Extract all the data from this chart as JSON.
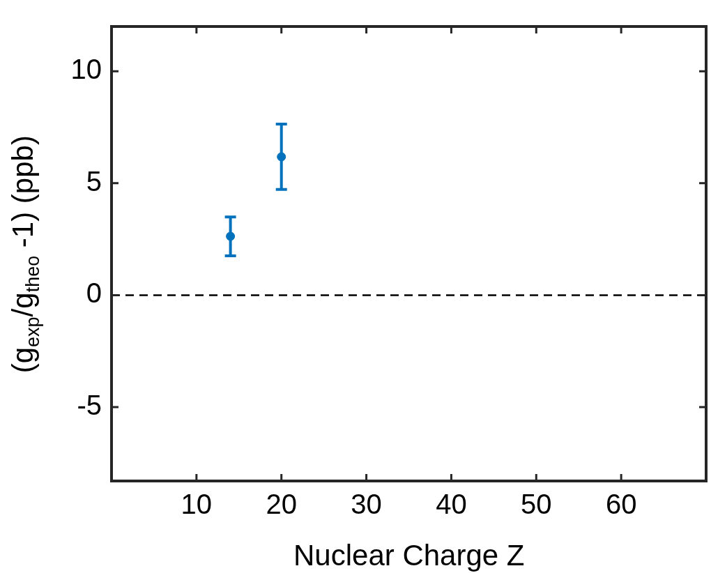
{
  "chart_data": {
    "type": "scatter",
    "xlabel": "Nuclear Charge Z",
    "ylabel": "(g$_{exp}$/g$_{theo}$ -1) (ppb)",
    "series": [
      {
        "color": "#0072bd",
        "x": [
          14,
          20
        ],
        "values": [
          2.63,
          6.18
        ],
        "errors": [
          [
            1.76,
            3.49
          ],
          [
            4.72,
            7.64
          ]
        ]
      }
    ],
    "xlim": [
      0,
      70
    ],
    "ylim": [
      -8.3,
      12
    ],
    "xticks": [
      10,
      20,
      30,
      40,
      50,
      60
    ],
    "yticks": [
      -5,
      0,
      5,
      10
    ],
    "ref_lines": [
      {
        "axis": "y",
        "value": 0,
        "color": "#000000",
        "line_style": "dashed"
      }
    ],
    "marker": "circle",
    "grid": false,
    "legend": false
  }
}
